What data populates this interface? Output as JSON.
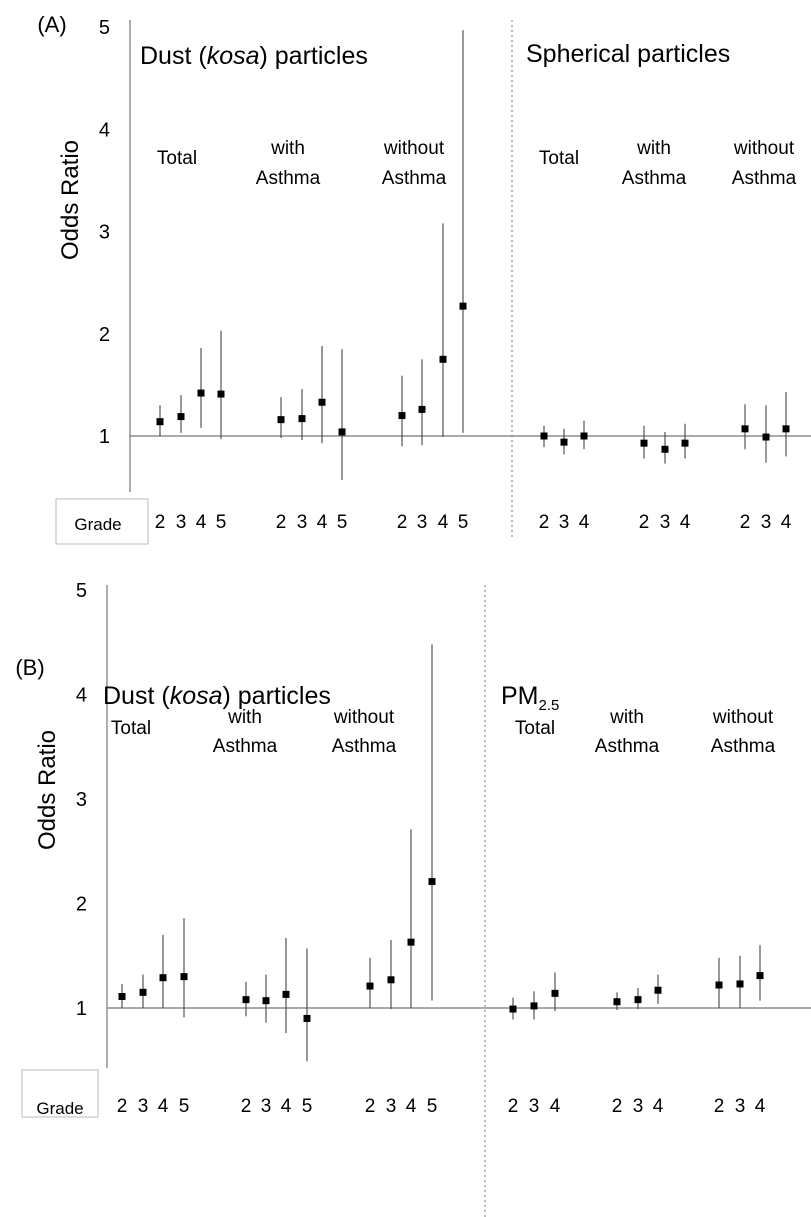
{
  "chart_data": [
    {
      "type": "scatter",
      "panel_label": "(A)",
      "ylabel": "Odds Ratio",
      "ylim": [
        1,
        5
      ],
      "yticks": [
        "1",
        "2",
        "3",
        "4",
        "5"
      ],
      "reference_line": 1,
      "grade_label": "Grade",
      "sections": [
        {
          "title_parts": [
            "Dust (",
            "kosa",
            ") particles"
          ],
          "groups": [
            {
              "label": [
                "Total"
              ],
              "grades": [
                "2",
                "3",
                "4",
                "5"
              ],
              "or": [
                1.14,
                1.19,
                1.42,
                1.41
              ],
              "lower": [
                1.0,
                1.03,
                1.08,
                0.97
              ],
              "upper": [
                1.3,
                1.4,
                1.86,
                2.03
              ]
            },
            {
              "label": [
                "with",
                "Asthma"
              ],
              "grades": [
                "2",
                "3",
                "4",
                "5"
              ],
              "or": [
                1.16,
                1.17,
                1.33,
                1.04
              ],
              "lower": [
                0.98,
                0.96,
                0.93,
                0.57
              ],
              "upper": [
                1.38,
                1.46,
                1.88,
                1.85
              ]
            },
            {
              "label": [
                "without",
                "Asthma"
              ],
              "grades": [
                "2",
                "3",
                "4",
                "5"
              ],
              "or": [
                1.2,
                1.26,
                1.75,
                2.27
              ],
              "lower": [
                0.9,
                0.91,
                0.99,
                1.03
              ],
              "upper": [
                1.59,
                1.75,
                3.08,
                4.97
              ]
            }
          ]
        },
        {
          "title_parts": [
            "Spherical particles"
          ],
          "groups": [
            {
              "label": [
                "Total"
              ],
              "grades": [
                "2",
                "3",
                "4"
              ],
              "or": [
                1.0,
                0.94,
                1.0
              ],
              "lower": [
                0.89,
                0.82,
                0.87
              ],
              "upper": [
                1.1,
                1.07,
                1.15
              ]
            },
            {
              "label": [
                "with",
                "Asthma"
              ],
              "grades": [
                "2",
                "3",
                "4"
              ],
              "or": [
                0.93,
                0.87,
                0.93
              ],
              "lower": [
                0.78,
                0.73,
                0.78
              ],
              "upper": [
                1.1,
                1.04,
                1.12
              ]
            },
            {
              "label": [
                "without",
                "Asthma"
              ],
              "grades": [
                "2",
                "3",
                "4"
              ],
              "or": [
                1.07,
                0.99,
                1.07
              ],
              "lower": [
                0.87,
                0.74,
                0.8
              ],
              "upper": [
                1.31,
                1.3,
                1.43
              ]
            }
          ]
        }
      ]
    },
    {
      "type": "scatter",
      "panel_label": "(B)",
      "ylabel": "Odds Ratio",
      "ylim": [
        1,
        5
      ],
      "yticks": [
        "1",
        "2",
        "3",
        "4",
        "5"
      ],
      "reference_line": 1,
      "grade_label": "Grade",
      "sections": [
        {
          "title_parts": [
            "Dust (",
            "kosa",
            ") particles"
          ],
          "groups": [
            {
              "label": [
                "Total"
              ],
              "grades": [
                "2",
                "3",
                "4",
                "5"
              ],
              "or": [
                1.11,
                1.15,
                1.29,
                1.3
              ],
              "lower": [
                1.0,
                1.0,
                1.0,
                0.91
              ],
              "upper": [
                1.23,
                1.32,
                1.7,
                1.86
              ]
            },
            {
              "label": [
                "with",
                "Asthma"
              ],
              "grades": [
                "2",
                "3",
                "4",
                "5"
              ],
              "or": [
                1.08,
                1.07,
                1.13,
                0.9
              ],
              "lower": [
                0.92,
                0.86,
                0.76,
                0.49
              ],
              "upper": [
                1.25,
                1.32,
                1.67,
                1.57
              ]
            },
            {
              "label": [
                "without",
                "Asthma"
              ],
              "grades": [
                "2",
                "3",
                "4",
                "5"
              ],
              "or": [
                1.21,
                1.27,
                1.63,
                2.21
              ],
              "lower": [
                1.0,
                0.99,
                1.0,
                1.07
              ],
              "upper": [
                1.48,
                1.65,
                2.71,
                4.48
              ]
            }
          ]
        },
        {
          "title_parts": [
            "PM",
            "2.5"
          ],
          "groups": [
            {
              "label": [
                "Total"
              ],
              "grades": [
                "2",
                "3",
                "4"
              ],
              "or": [
                0.99,
                1.02,
                1.14
              ],
              "lower": [
                0.89,
                0.89,
                0.97
              ],
              "upper": [
                1.1,
                1.16,
                1.34
              ]
            },
            {
              "label": [
                "with",
                "Asthma"
              ],
              "grades": [
                "2",
                "3",
                "4"
              ],
              "or": [
                1.06,
                1.08,
                1.17
              ],
              "lower": [
                0.98,
                0.99,
                1.04
              ],
              "upper": [
                1.15,
                1.19,
                1.32
              ]
            },
            {
              "label": [
                "without",
                "Asthma"
              ],
              "grades": [
                "2",
                "3",
                "4"
              ],
              "or": [
                1.22,
                1.23,
                1.31
              ],
              "lower": [
                1.0,
                1.0,
                1.07
              ],
              "upper": [
                1.48,
                1.5,
                1.6
              ]
            }
          ]
        }
      ]
    }
  ]
}
